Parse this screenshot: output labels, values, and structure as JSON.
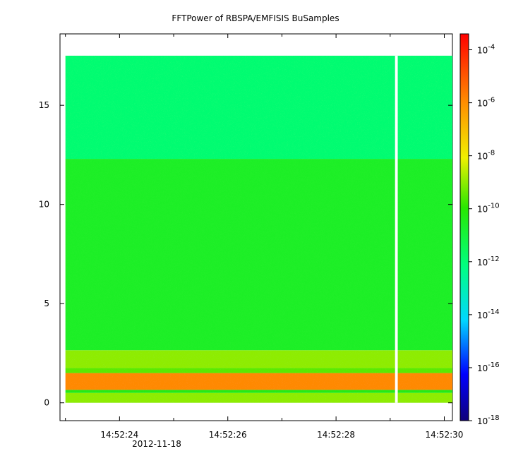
{
  "chart_data": {
    "type": "heatmap",
    "title": "FFTPower of RBSPA/EMFISIS  BuSamples",
    "xlabel": "",
    "ylabel": "",
    "x_tick_labels": [
      "14:52:24",
      "14:52:26",
      "14:52:28",
      "14:52:30"
    ],
    "x_tick_seconds": [
      24,
      26,
      28,
      30
    ],
    "x_date_label": "2012-11-18",
    "xlim_seconds": [
      22.9,
      30.15
    ],
    "data_start_seconds": 23.0,
    "data_end_seconds": 30.15,
    "gap_seconds": [
      29.09,
      29.14
    ],
    "y_ticks": [
      0,
      5,
      10,
      15
    ],
    "ylim": [
      -0.9,
      18.6
    ],
    "data_ymax": 17.5,
    "colorbar": {
      "scale": "log",
      "range_exponents": [
        -18,
        -3.4
      ],
      "tick_exponents": [
        -4,
        -6,
        -8,
        -10,
        -12,
        -14,
        -16,
        -18
      ],
      "tick_base": "10"
    },
    "bands": [
      {
        "y": [
          0.0,
          0.5
        ],
        "log10_power": -9.0
      },
      {
        "y": [
          0.5,
          0.65
        ],
        "log10_power": -10.3
      },
      {
        "y": [
          0.65,
          1.5
        ],
        "log10_power": -5.9
      },
      {
        "y": [
          1.5,
          1.75
        ],
        "log10_power": -9.5
      },
      {
        "y": [
          1.75,
          2.65
        ],
        "log10_power": -9.0
      },
      {
        "y": [
          2.65,
          12.3
        ],
        "log10_power": -10.6
      },
      {
        "y": [
          12.3,
          17.5
        ],
        "log10_power": -11.9
      }
    ]
  }
}
